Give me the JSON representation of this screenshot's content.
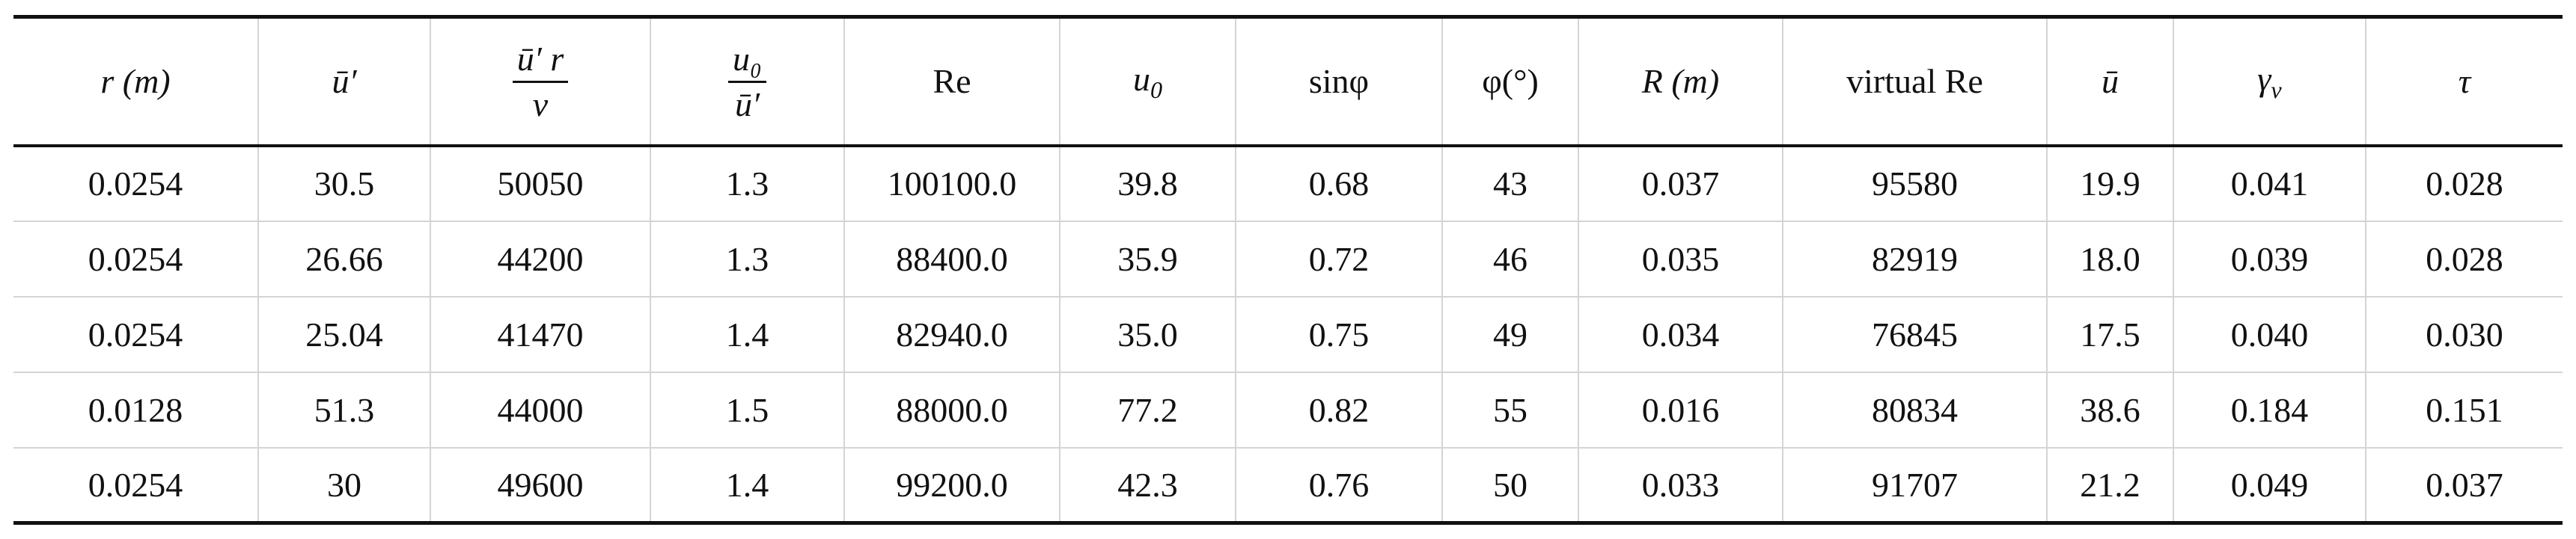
{
  "table": {
    "header": [
      {
        "label": "r (m)",
        "italic": true
      },
      {
        "label": "ū′",
        "italic": true
      },
      {
        "numerator": "ū′ r",
        "denominator": "ν",
        "italic": true
      },
      {
        "numerator": "u₀",
        "denominator": "ū′",
        "italic": true
      },
      {
        "label": "Re",
        "italic": false
      },
      {
        "base": "u",
        "sub": "0",
        "italic": true
      },
      {
        "label": "sinφ",
        "italic": false
      },
      {
        "label": "φ(°)",
        "italic": false
      },
      {
        "label": "R (m)",
        "italic": true
      },
      {
        "label": "virtual Re",
        "italic": false
      },
      {
        "label": "ū",
        "italic": true
      },
      {
        "base": "γ",
        "sub": "ν",
        "italic": true
      },
      {
        "label": "τ",
        "italic": true
      }
    ],
    "rows": [
      [
        "0.0254",
        "30.5",
        "50050",
        "1.3",
        "100100.0",
        "39.8",
        "0.68",
        "43",
        "0.037",
        "95580",
        "19.9",
        "0.041",
        "0.028"
      ],
      [
        "0.0254",
        "26.66",
        "44200",
        "1.3",
        "88400.0",
        "35.9",
        "0.72",
        "46",
        "0.035",
        "82919",
        "18.0",
        "0.039",
        "0.028"
      ],
      [
        "0.0254",
        "25.04",
        "41470",
        "1.4",
        "82940.0",
        "35.0",
        "0.75",
        "49",
        "0.034",
        "76845",
        "17.5",
        "0.040",
        "0.030"
      ],
      [
        "0.0128",
        "51.3",
        "44000",
        "1.5",
        "88000.0",
        "77.2",
        "0.82",
        "55",
        "0.016",
        "80834",
        "38.6",
        "0.184",
        "0.151"
      ],
      [
        "0.0254",
        "30",
        "49600",
        "1.4",
        "99200.0",
        "42.3",
        "0.76",
        "50",
        "0.033",
        "91707",
        "21.2",
        "0.049",
        "0.037"
      ]
    ]
  }
}
